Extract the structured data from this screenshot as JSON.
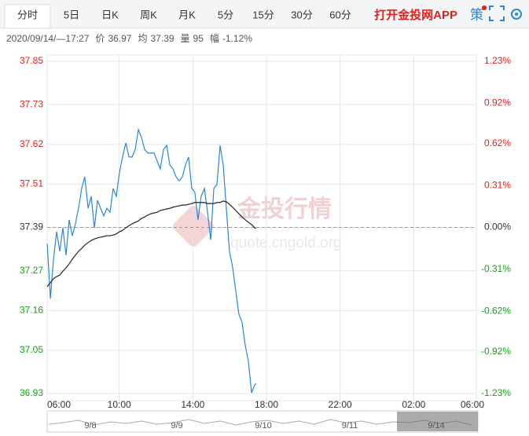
{
  "tabs": [
    "分时",
    "5日",
    "日K",
    "周K",
    "月K",
    "5分",
    "15分",
    "30分",
    "60分"
  ],
  "app_link": "打开金投网APP",
  "strategy": "策",
  "info": {
    "time": "2020/09/14/—17:27",
    "items": [
      {
        "label": "价",
        "value": "36.97"
      },
      {
        "label": "均",
        "value": "37.39"
      },
      {
        "label": "量",
        "value": "95"
      },
      {
        "label": "幅",
        "value": "-1.12%"
      }
    ]
  },
  "watermark": {
    "title": "金投行情",
    "url": "quote.cngold.org"
  },
  "navigator": {
    "labels": [
      "9/8",
      "9/9",
      "9/10",
      "9/11",
      "9/14"
    ]
  },
  "chart_data": {
    "type": "line",
    "x": [
      6.09,
      6.26,
      6.43,
      6.6,
      6.77,
      6.94,
      7.11,
      7.28,
      7.45,
      7.62,
      7.79,
      7.96,
      8.13,
      8.31,
      8.48,
      8.65,
      8.82,
      8.99,
      9.16,
      9.33,
      9.5,
      9.67,
      9.84,
      10.01,
      10.18,
      10.36,
      10.53,
      10.7,
      10.87,
      11.04,
      11.21,
      11.38,
      11.55,
      11.72,
      11.89,
      12.06,
      12.23,
      12.41,
      12.58,
      12.75,
      12.92,
      13.09,
      13.26,
      13.43,
      13.6,
      13.77,
      13.94,
      14.11,
      14.28,
      14.45,
      14.63,
      14.8,
      14.97,
      15.14,
      15.31,
      15.48,
      15.65,
      15.82,
      15.99,
      16.16,
      16.33,
      16.5,
      16.67,
      16.85,
      17.02,
      17.19,
      17.36,
      17.44
    ],
    "series": [
      {
        "color": "#2b86d9",
        "values": [
          37.345,
          37.193,
          37.302,
          37.378,
          37.324,
          37.389,
          37.313,
          37.411,
          37.367,
          37.4,
          37.443,
          37.498,
          37.53,
          37.443,
          37.476,
          37.389,
          37.465,
          37.443,
          37.422,
          37.443,
          37.432,
          37.498,
          37.476,
          37.541,
          37.585,
          37.624,
          37.585,
          37.585,
          37.606,
          37.661,
          37.639,
          37.606,
          37.596,
          37.596,
          37.596,
          37.574,
          37.552,
          37.606,
          37.617,
          37.563,
          37.552,
          37.53,
          37.519,
          37.53,
          37.563,
          37.585,
          37.498,
          37.487,
          37.411,
          37.476,
          37.498,
          37.432,
          37.356,
          37.498,
          37.509,
          37.617,
          37.563,
          37.443,
          37.324,
          37.28,
          37.215,
          37.15,
          37.128,
          37.063,
          37.019,
          36.932,
          36.954,
          36.958
        ]
      },
      {
        "color": "#222222",
        "values": [
          37.226,
          37.237,
          37.248,
          37.254,
          37.258,
          37.269,
          37.278,
          37.289,
          37.302,
          37.313,
          37.324,
          37.332,
          37.341,
          37.348,
          37.354,
          37.358,
          37.361,
          37.363,
          37.365,
          37.367,
          37.367,
          37.369,
          37.372,
          37.378,
          37.382,
          37.389,
          37.395,
          37.4,
          37.404,
          37.408,
          37.415,
          37.419,
          37.424,
          37.428,
          37.43,
          37.432,
          37.437,
          37.439,
          37.441,
          37.443,
          37.446,
          37.448,
          37.45,
          37.452,
          37.452,
          37.454,
          37.456,
          37.459,
          37.459,
          37.459,
          37.459,
          37.456,
          37.456,
          37.456,
          37.459,
          37.459,
          37.463,
          37.461,
          37.454,
          37.446,
          37.437,
          37.428,
          37.419,
          37.411,
          37.404,
          37.398,
          37.389,
          37.387
        ]
      }
    ],
    "baseline": 37.39,
    "xlim": [
      6,
      30
    ],
    "xticks": [
      {
        "value": 6,
        "label": "06:00"
      },
      {
        "value": 10,
        "label": "10:00"
      },
      {
        "value": 14,
        "label": "14:00"
      },
      {
        "value": 18,
        "label": "18:00"
      },
      {
        "value": 22,
        "label": "22:00"
      },
      {
        "value": 26,
        "label": "02:00"
      },
      {
        "value": 30,
        "label": "06:00"
      }
    ],
    "ylim": [
      36.93,
      37.85
    ],
    "yticks": [
      37.85,
      37.73,
      37.62,
      37.51,
      37.39,
      37.27,
      37.16,
      37.05,
      36.93
    ],
    "y2lim": [
      -1.23,
      1.23
    ],
    "y2ticks": [
      {
        "value": 1.23,
        "label": "1.23%"
      },
      {
        "value": 0.92,
        "label": "0.92%"
      },
      {
        "value": 0.62,
        "label": "0.62%"
      },
      {
        "value": 0.31,
        "label": "0.31%"
      },
      {
        "value": 0,
        "label": "0.00%"
      },
      {
        "value": -0.31,
        "label": "-0.31%"
      },
      {
        "value": -0.62,
        "label": "-0.62%"
      },
      {
        "value": -0.92,
        "label": "-0.92%"
      },
      {
        "value": -1.23,
        "label": "-1.23%"
      }
    ],
    "grid": true
  }
}
